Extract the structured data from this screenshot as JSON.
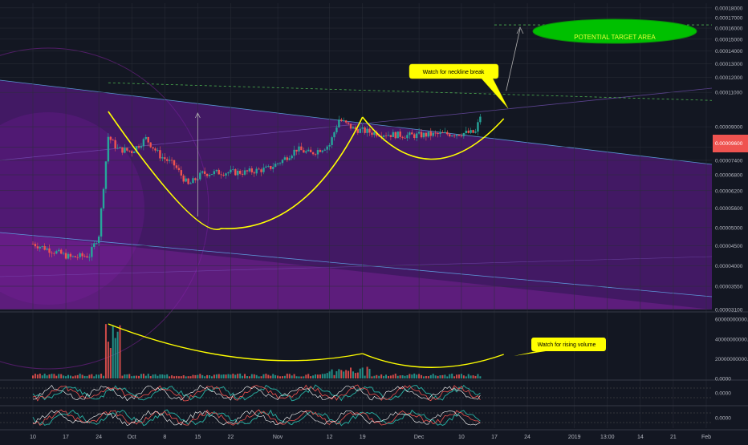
{
  "chart_data": [
    {
      "type": "candlestick",
      "panel": "price",
      "y_axis": {
        "scale": "log",
        "ylim": [
          3.1e-05,
          0.000185
        ],
        "tick_labels": [
          "0.00018000",
          "0.00017000",
          "0.00016000",
          "0.00015000",
          "0.00014000",
          "0.00013000",
          "0.00012000",
          "0.00011000",
          "0.00009000",
          "0.00008000",
          "0.00007400",
          "0.00006800",
          "0.00006200",
          "0.00005600",
          "0.00005000",
          "0.00004500",
          "0.00004000",
          "0.00003550",
          "0.00003100"
        ],
        "tick_values": [
          0.00018,
          0.00017,
          0.00016,
          0.00015,
          0.00014,
          0.00013,
          0.00012,
          0.00011,
          9e-05,
          8e-05,
          7.4e-05,
          6.8e-05,
          6.2e-05,
          5.6e-05,
          5e-05,
          4.5e-05,
          4e-05,
          3.55e-05,
          3.1e-05
        ]
      },
      "last_price_label": "0.00009600",
      "approx_close_series": [
        {
          "day": 0,
          "close": 4.55e-05
        },
        {
          "day": 8,
          "close": 4.2e-05
        },
        {
          "day": 12,
          "close": 4.25e-05
        },
        {
          "day": 14,
          "close": 4.8e-05
        },
        {
          "day": 16,
          "close": 8.5e-05
        },
        {
          "day": 18,
          "close": 7.9e-05
        },
        {
          "day": 21,
          "close": 7.8e-05
        },
        {
          "day": 24,
          "close": 8.4e-05
        },
        {
          "day": 27,
          "close": 7.6e-05
        },
        {
          "day": 30,
          "close": 7.2e-05
        },
        {
          "day": 33,
          "close": 6.4e-05
        },
        {
          "day": 36,
          "close": 6.85e-05
        },
        {
          "day": 40,
          "close": 6.9e-05
        },
        {
          "day": 45,
          "close": 6.9e-05
        },
        {
          "day": 50,
          "close": 7.05e-05
        },
        {
          "day": 53,
          "close": 7.4e-05
        },
        {
          "day": 56,
          "close": 7.9e-05
        },
        {
          "day": 59,
          "close": 7.7e-05
        },
        {
          "day": 63,
          "close": 8.1e-05
        },
        {
          "day": 65,
          "close": 9.4e-05
        },
        {
          "day": 68,
          "close": 8.9e-05
        },
        {
          "day": 72,
          "close": 8.7e-05
        },
        {
          "day": 76,
          "close": 8.6e-05
        },
        {
          "day": 80,
          "close": 8.55e-05
        },
        {
          "day": 85,
          "close": 8.6e-05
        },
        {
          "day": 90,
          "close": 8.65e-05
        },
        {
          "day": 94,
          "close": 8.7e-05
        },
        {
          "day": 95,
          "close": 9.6e-05
        }
      ],
      "annotations": {
        "neckline_callout": "Watch for neckline break",
        "target_label": "POTENTIAL TARGET AREA",
        "neckline_level": 0.000111,
        "target_level": 0.000163
      }
    },
    {
      "type": "bar",
      "panel": "volume",
      "ylim": [
        0,
        65000000000
      ],
      "tick_labels": [
        "60000000000.0000",
        "40000000000.0000",
        "20000000000.0000",
        "0.0000"
      ],
      "tick_values": [
        60000000000,
        40000000000,
        20000000000,
        0
      ],
      "annotation": "Watch for rising volume"
    },
    {
      "type": "line",
      "panel": "oscillator-1",
      "tick_labels": [
        "0.0000"
      ]
    },
    {
      "type": "line",
      "panel": "oscillator-2",
      "tick_labels": [
        "0.0000"
      ]
    }
  ],
  "x_axis": {
    "tick_labels": [
      "10",
      "17",
      "24",
      "Oct",
      "8",
      "15",
      "22",
      "Nov",
      "12",
      "19",
      "Dec",
      "10",
      "17",
      "24",
      "2019",
      "13:00",
      "14",
      "21",
      "Feb"
    ],
    "tick_days": [
      0,
      7,
      14,
      21,
      28,
      35,
      42,
      52,
      63,
      70,
      82,
      91,
      98,
      105,
      115,
      122,
      129,
      136,
      143
    ]
  },
  "colors": {
    "background": "#131722",
    "up": "#26a69a",
    "down": "#ef5350",
    "pattern": "#ffff00",
    "target": "#00c000",
    "purple_band": "#7b1fa2"
  }
}
